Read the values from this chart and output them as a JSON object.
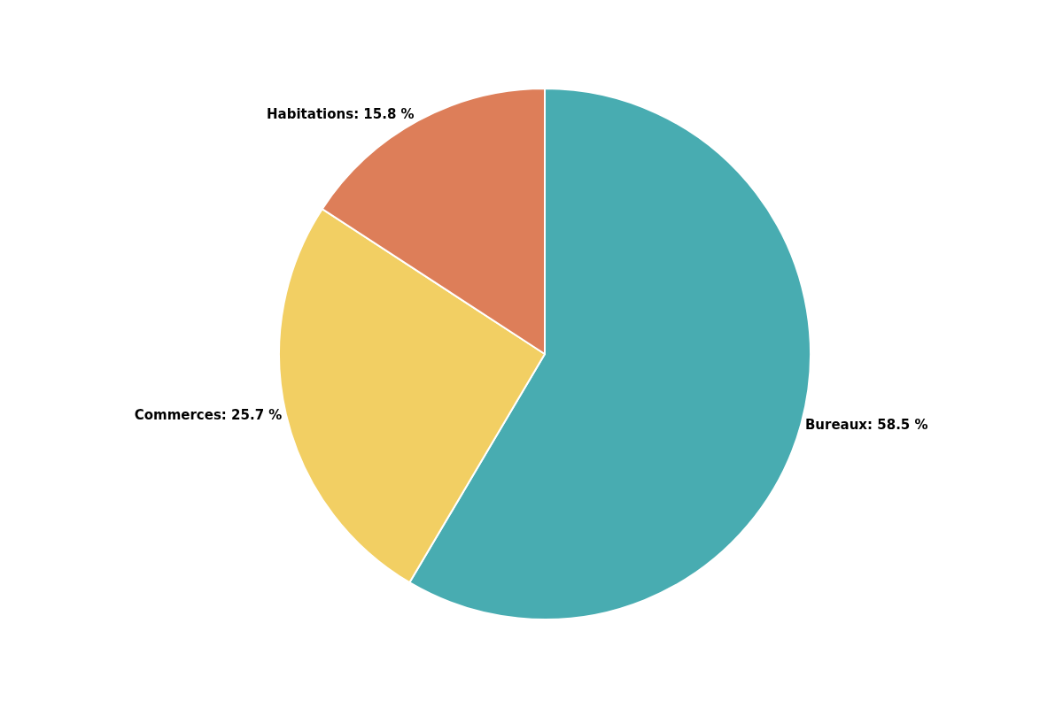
{
  "chart_data": {
    "type": "pie",
    "categories": [
      "Bureaux",
      "Commerces",
      "Habitations"
    ],
    "values": [
      58.5,
      25.7,
      15.8
    ],
    "value_labels": [
      "58.5 %",
      "25.7 %",
      "15.8 %"
    ],
    "colors": [
      "#48acb1",
      "#f2cf63",
      "#dd7e59"
    ],
    "legend": false
  }
}
